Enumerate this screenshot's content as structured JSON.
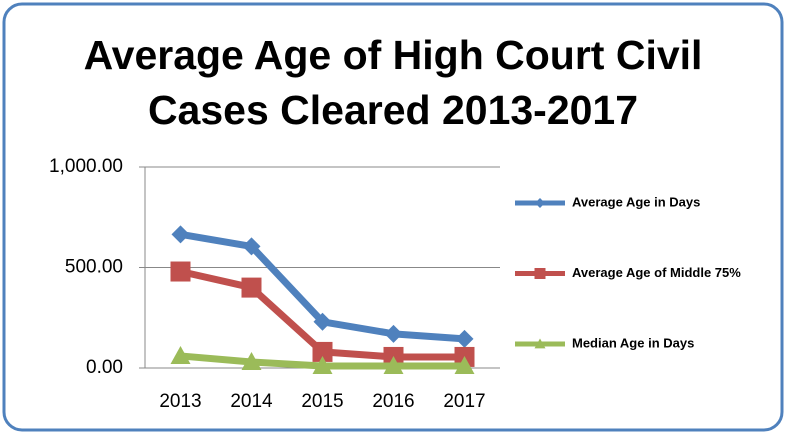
{
  "chart_data": {
    "type": "line",
    "title": "Average Age of High Court Civil Cases Cleared 2013-2017",
    "categories": [
      "2013",
      "2014",
      "2015",
      "2016",
      "2017"
    ],
    "series": [
      {
        "name": "Average Age in Days",
        "color": "#4f81bd",
        "marker": "diamond",
        "values": [
          665,
          605,
          230,
          170,
          145
        ]
      },
      {
        "name": "Average Age of Middle 75%",
        "color": "#c0504d",
        "marker": "square",
        "values": [
          480,
          400,
          80,
          55,
          55
        ]
      },
      {
        "name": "Median Age in Days",
        "color": "#9bbb59",
        "marker": "triangle",
        "values": [
          60,
          30,
          10,
          10,
          10
        ]
      }
    ],
    "ylim": [
      0,
      1000
    ],
    "yticks": [
      {
        "value": 0,
        "label": "0.00"
      },
      {
        "value": 500,
        "label": "500.00"
      },
      {
        "value": 1000,
        "label": "1,000.00"
      }
    ],
    "grid": true,
    "legend": "right"
  }
}
